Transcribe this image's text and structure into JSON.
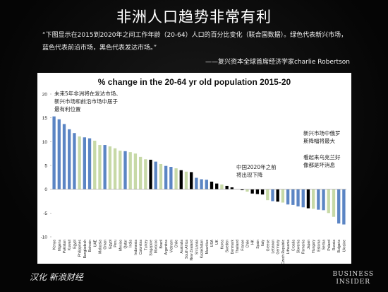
{
  "slide": {
    "title": "非洲人口趋势非常有利",
    "caption": "“下图显示在2015到2020年之间工作年龄（20-64）人口的百分比变化（联合国数据）。绿色代表新兴市场，蓝色代表前沿市场，黑色代表发达市场。”",
    "attribution": "——复兴资本全球首席经济学家charlie Robertson",
    "footer_left": "汉化 新浪财经",
    "logo_line1": "BUSINESS",
    "logo_line2": "INSIDER"
  },
  "colors": {
    "frontier": "#5b85c4",
    "emerging": "#c7d9a7",
    "developed": "#000000"
  },
  "chart_data": {
    "type": "bar",
    "title": "% change in the 20-64 yr old population 2015-20",
    "ylim": [
      -10,
      20
    ],
    "yticks": [
      -10,
      -5,
      0,
      5,
      10,
      15,
      20
    ],
    "grid": false,
    "legend": "none",
    "categories": [
      "Kenya",
      "Nigeria",
      "Pakistan",
      "Kuwait",
      "Egypt",
      "Philippines",
      "Bangladesh",
      "Bahrain",
      "UAE",
      "Malaysia",
      "Oman",
      "Egypt",
      "Peru",
      "Mexico",
      "Qatar",
      "India",
      "Indonesia",
      "Colombia",
      "Turkey",
      "Singapore",
      "Morocco",
      "Brazil",
      "Argentina",
      "Vietnam",
      "Chile",
      "Australia",
      "South Africa",
      "New Zealand",
      "Sri Lanka",
      "Kazakhstan",
      "Mauritius",
      "USA",
      "UK",
      "Korea",
      "Sweden",
      "Denmark",
      "Thailand",
      "France",
      "Chile",
      "HK",
      "Spain",
      "Italy",
      "Greece",
      "Lebanon",
      "Germany",
      "Czech Republic",
      "Lithuania",
      "Croatia",
      "Slovenia",
      "Romania",
      "Japan",
      "Hungary",
      "Estonia",
      "Serbia",
      "Poland",
      "Russia",
      "Bulgaria",
      "Ukraine"
    ],
    "values": [
      15.3,
      14.7,
      13.7,
      12.6,
      11.8,
      11.1,
      10.9,
      10.7,
      10.2,
      9.3,
      9.3,
      9.0,
      8.6,
      8.1,
      8.0,
      7.8,
      7.5,
      6.8,
      6.3,
      6.2,
      5.8,
      5.3,
      4.9,
      4.7,
      4.4,
      4.0,
      3.7,
      3.6,
      2.4,
      2.1,
      2.0,
      1.6,
      1.2,
      1.0,
      0.7,
      0.4,
      0.0,
      -0.2,
      -0.5,
      -0.9,
      -1.0,
      -1.1,
      -2.3,
      -2.5,
      -2.6,
      -2.8,
      -3.2,
      -3.3,
      -3.6,
      -3.8,
      -4.0,
      -4.1,
      -4.3,
      -4.4,
      -5.0,
      -5.8,
      -7.2,
      -7.4
    ],
    "group": [
      "frontier",
      "frontier",
      "frontier",
      "frontier",
      "frontier",
      "emerging",
      "frontier",
      "frontier",
      "emerging",
      "emerging",
      "frontier",
      "emerging",
      "emerging",
      "emerging",
      "frontier",
      "emerging",
      "emerging",
      "emerging",
      "emerging",
      "developed",
      "frontier",
      "emerging",
      "frontier",
      "frontier",
      "emerging",
      "developed",
      "emerging",
      "developed",
      "frontier",
      "frontier",
      "frontier",
      "developed",
      "developed",
      "emerging",
      "developed",
      "developed",
      "emerging",
      "developed",
      "emerging",
      "developed",
      "developed",
      "developed",
      "emerging",
      "frontier",
      "developed",
      "emerging",
      "frontier",
      "frontier",
      "frontier",
      "frontier",
      "developed",
      "emerging",
      "frontier",
      "frontier",
      "emerging",
      "emerging",
      "frontier",
      "frontier"
    ],
    "annotations": [
      {
        "text": "未来5年非洲将在发达市场、\n新兴市场和前沿市场中居于\n最有利位置"
      },
      {
        "text": "中国2020年之前\n将出现下降"
      },
      {
        "text": "新兴市场中俄罗\n斯降幅将最大"
      },
      {
        "text": "看起来乌克兰好\n像都是坏消息"
      }
    ]
  }
}
